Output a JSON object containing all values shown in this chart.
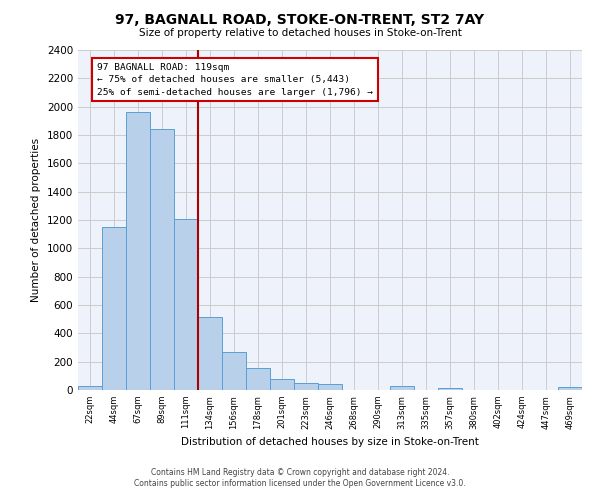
{
  "title": "97, BAGNALL ROAD, STOKE-ON-TRENT, ST2 7AY",
  "subtitle": "Size of property relative to detached houses in Stoke-on-Trent",
  "xlabel": "Distribution of detached houses by size in Stoke-on-Trent",
  "ylabel": "Number of detached properties",
  "categories": [
    "22sqm",
    "44sqm",
    "67sqm",
    "89sqm",
    "111sqm",
    "134sqm",
    "156sqm",
    "178sqm",
    "201sqm",
    "223sqm",
    "246sqm",
    "268sqm",
    "290sqm",
    "313sqm",
    "335sqm",
    "357sqm",
    "380sqm",
    "402sqm",
    "424sqm",
    "447sqm",
    "469sqm"
  ],
  "values": [
    30,
    1150,
    1960,
    1840,
    1210,
    515,
    265,
    155,
    80,
    50,
    45,
    0,
    0,
    25,
    0,
    15,
    0,
    0,
    0,
    0,
    20
  ],
  "bar_color": "#b8d0ea",
  "bar_edge_color": "#5a9fd4",
  "annotation_text": "97 BAGNALL ROAD: 119sqm\n← 75% of detached houses are smaller (5,443)\n25% of semi-detached houses are larger (1,796) →",
  "vline_color": "#aa0000",
  "grid_color": "#cccccc",
  "background_color": "#eef2fb",
  "footer_line1": "Contains HM Land Registry data © Crown copyright and database right 2024.",
  "footer_line2": "Contains public sector information licensed under the Open Government Licence v3.0.",
  "ylim": [
    0,
    2400
  ],
  "yticks": [
    0,
    200,
    400,
    600,
    800,
    1000,
    1200,
    1400,
    1600,
    1800,
    2000,
    2200,
    2400
  ]
}
